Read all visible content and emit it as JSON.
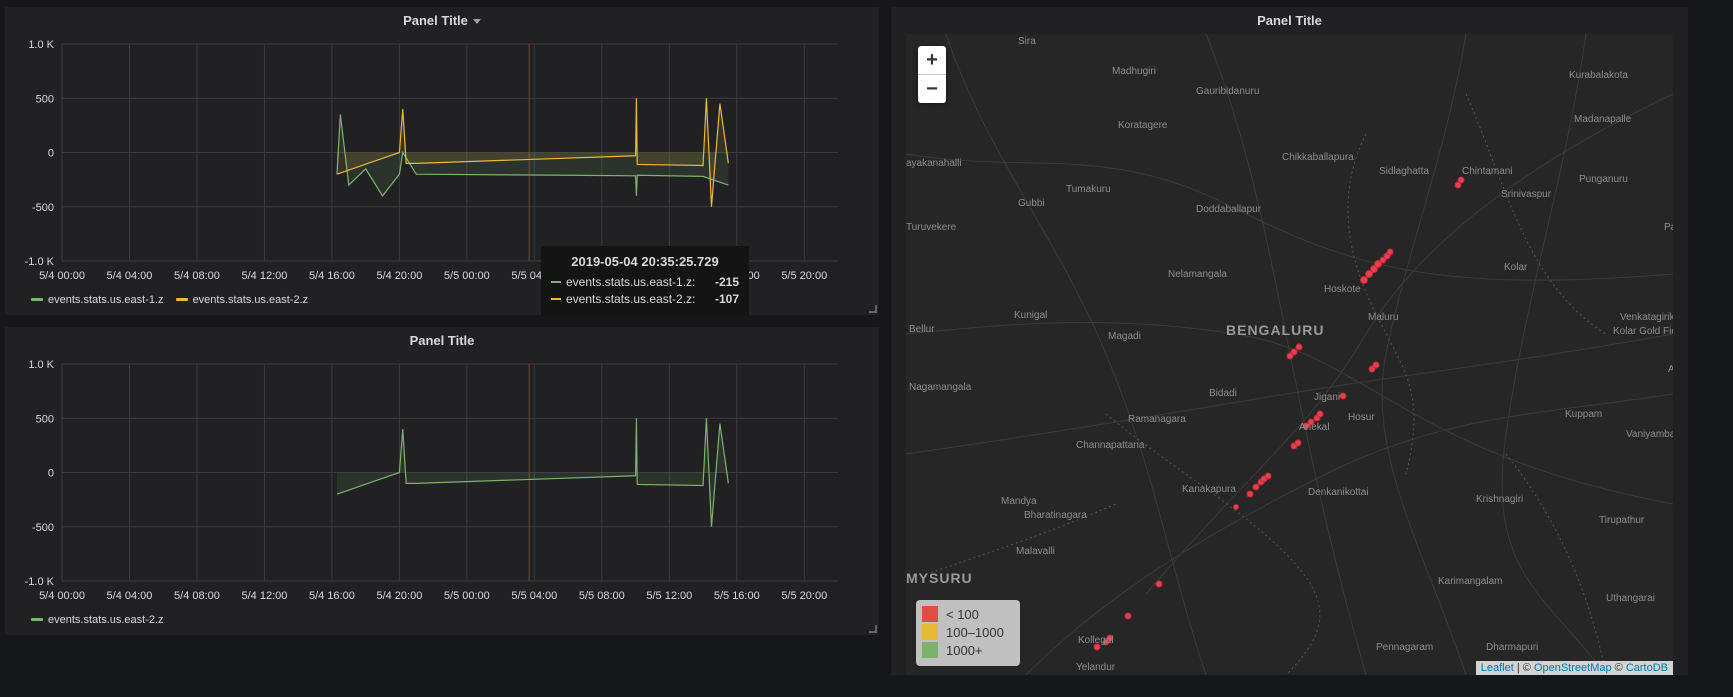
{
  "panels": {
    "top_left": {
      "title": "Panel Title"
    },
    "bottom_left": {
      "title": "Panel Title"
    },
    "map": {
      "title": "Panel Title"
    }
  },
  "graph": {
    "y_ticks": [
      "1.0 K",
      "500",
      "0",
      "-500",
      "-1.0 K"
    ],
    "x_ticks": [
      "5/4 00:00",
      "5/4 04:00",
      "5/4 08:00",
      "5/4 12:00",
      "5/4 16:00",
      "5/4 20:00",
      "5/5 00:00",
      "5/5 04:00",
      "5/5 08:00",
      "5/5 12:00",
      "5/5 16:00",
      "5/5 20:00"
    ]
  },
  "chart_data": [
    {
      "type": "line",
      "title": "Panel Title",
      "ylim": [
        -1000,
        1000
      ],
      "x_range": [
        "2019-05-04 00:00",
        "2019-05-05 22:00"
      ],
      "series": [
        {
          "name": "events.stats.us.east-1.z",
          "color": "#7eb26d",
          "x_hours": [
            16.3,
            16.5,
            17,
            18,
            19,
            20,
            20.2,
            21,
            30,
            34,
            34.05,
            34.1,
            38,
            39.5
          ],
          "values": [
            -200,
            350,
            -300,
            -150,
            -400,
            -200,
            0,
            -200,
            -210,
            -215,
            -400,
            -210,
            -220,
            -300
          ]
        },
        {
          "name": "events.stats.us.east-2.z",
          "color": "#eab839",
          "x_hours": [
            16.3,
            20,
            20.2,
            20.4,
            21,
            34,
            34.05,
            34.1,
            38,
            38.2,
            38.5,
            39,
            39.5
          ],
          "values": [
            -200,
            0,
            400,
            -100,
            -100,
            -30,
            500,
            -110,
            -120,
            500,
            -500,
            450,
            -100
          ]
        }
      ]
    },
    {
      "type": "line",
      "title": "Panel Title",
      "ylim": [
        -1000,
        1000
      ],
      "series": [
        {
          "name": "events.stats.us.east-2.z",
          "color": "#7eb26d",
          "x_hours": [
            16.3,
            20,
            20.2,
            20.4,
            21,
            34,
            34.05,
            34.1,
            38,
            38.2,
            38.5,
            39,
            39.5
          ],
          "values": [
            -200,
            0,
            400,
            -100,
            -100,
            -30,
            500,
            -110,
            -120,
            500,
            -500,
            450,
            -100
          ]
        }
      ]
    }
  ],
  "legend_top": [
    {
      "label": "events.stats.us.east-1.z",
      "color": "#7eb26d"
    },
    {
      "label": "events.stats.us.east-2.z",
      "color": "#eab839"
    }
  ],
  "legend_bottom": [
    {
      "label": "events.stats.us.east-2.z",
      "color": "#7eb26d"
    }
  ],
  "tooltip": {
    "timestamp": "2019-05-04 20:35:25.729",
    "rows": [
      {
        "name": "events.stats.us.east-1.z:",
        "value": "-215",
        "color": "#7eb26d"
      },
      {
        "name": "events.stats.us.east-2.z:",
        "value": "-107",
        "color": "#eab839"
      }
    ]
  },
  "map": {
    "zoom_in": "+",
    "zoom_out": "−",
    "legend": [
      {
        "label": "< 100",
        "color": "#e24d42"
      },
      {
        "label": "100–1000",
        "color": "#eab839"
      },
      {
        "label": "1000+",
        "color": "#7eb26d"
      }
    ],
    "attribution": {
      "leaflet": "Leaflet",
      "sep1": " | © ",
      "osm": "OpenStreetMap",
      "sep2": " © ",
      "carto": "CartoDB"
    },
    "cities": [
      "Sira",
      "Madhugiri",
      "Gauribidanuru",
      "Kurabalakota",
      "Madanapalle",
      "Koratagere",
      "Chikkaballapura",
      "Sidlaghatta",
      "Chintamani",
      "Punganuru",
      "ayakanahalli",
      "Tumakuru",
      "Doddaballapur",
      "Srinivaspur",
      "Gubbi",
      "Turuvekere",
      "Nelamangala",
      "Hoskote",
      "Kolar",
      "Kunigal",
      "Maluru",
      "Bellur",
      "Magadi",
      "BENGALURU",
      "Kolar Gold Fields",
      "Venkatagirikota",
      "Nagamangala",
      "Bidadi",
      "Jigani",
      "Hosur",
      "Ramanagara",
      "Channapattana",
      "Anekal",
      "Kuppam",
      "Vaniyambadi",
      "Kanakapura",
      "Denkanikottai",
      "Mandya",
      "Bharatinagara",
      "Krishnagiri",
      "Tirupathur",
      "Malavalli",
      "MYSURU",
      "Karimangalam",
      "Uthangarai",
      "Kollegal",
      "Pennagaram",
      "Dharmapuri",
      "Yelandur",
      "Pa",
      "Ar"
    ]
  }
}
